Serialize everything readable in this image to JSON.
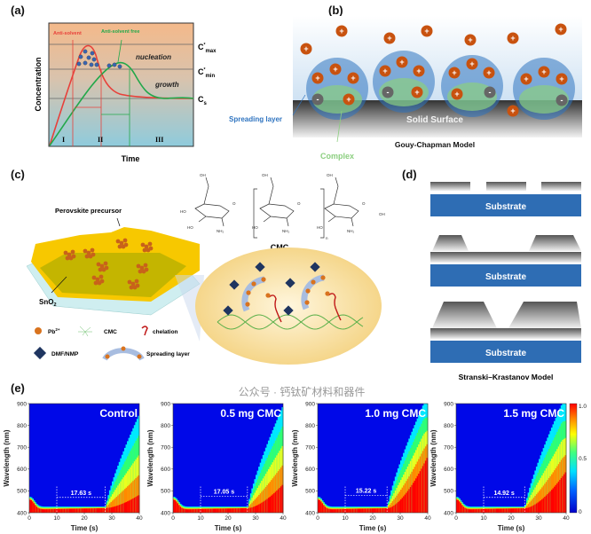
{
  "panels": {
    "a": {
      "label": "(a)",
      "ylabel": "Concentration",
      "xlabel": "Time",
      "anti_solvent": "Anti-solvent",
      "anti_solvent_free": "Anti-solvent free",
      "nucleation": "nucleation",
      "growth": "growth",
      "cmax": {
        "base": "C",
        "sup": "*",
        "sub": "max"
      },
      "cmin": {
        "base": "C",
        "sup": "*",
        "sub": "min"
      },
      "cs": {
        "base": "C",
        "sub": "s"
      },
      "stages": [
        "I",
        "II",
        "III"
      ],
      "colors": {
        "anti_solvent": "#e8403a",
        "anti_solvent_free": "#22a84a",
        "nuclei": "#3a64b0"
      }
    },
    "b": {
      "label": "(b)",
      "spreading_layer": "Spreading layer",
      "solid_surface": "Solid Surface",
      "complex": "Complex",
      "model": "Gouy-Chapman Model",
      "plus": "+",
      "minus": "-",
      "colors": {
        "cation": "#c8520f",
        "anion": "#666666",
        "spreading": "#2f74c0",
        "complex": "#8ccf80"
      }
    },
    "c": {
      "label": "(c)",
      "precursor": "Perovskite precursor",
      "sno2": {
        "base": "SnO",
        "sub": "2"
      },
      "cmc_title": "CMC",
      "chem_labels": [
        "OH",
        "O",
        "HO",
        "HO",
        "NH₂",
        "OH",
        "O",
        "HO",
        "NH₂",
        "OH",
        "O",
        "HO",
        "NH₂",
        "OH",
        "n"
      ],
      "legend": [
        {
          "icon": "pb-ion-icon",
          "text": "Pb",
          "sup": "2+"
        },
        {
          "icon": "cmc-network-icon",
          "text": "CMC"
        },
        {
          "icon": "chelation-icon",
          "text": "chelation"
        },
        {
          "icon": "dmf-nmp-diamond-icon",
          "text": "DMF/NMP"
        },
        {
          "icon": "spreading-layer-icon",
          "text": "Spreading layer"
        }
      ]
    },
    "d": {
      "label": "(d)",
      "substrate": "Substrate",
      "model": "Stranski–Krastanov Model",
      "colors": {
        "substrate": "#2e6db4"
      }
    },
    "e": {
      "label": "(e)"
    }
  },
  "watermark": "公众号 · 钙钛矿材料和器件",
  "chart_data": [
    {
      "type": "heatmap",
      "title": "Control",
      "xlabel": "Time (s)",
      "ylabel": "Wavelength (nm)",
      "xlim": [
        0,
        40
      ],
      "ylim": [
        400,
        900
      ],
      "xticks": [
        0,
        10,
        20,
        30,
        40
      ],
      "yticks": [
        400,
        500,
        600,
        700,
        800,
        900
      ],
      "interval": {
        "start": 10,
        "end": 27.63,
        "label": "17.63 s"
      }
    },
    {
      "type": "heatmap",
      "title": "0.5 mg CMC",
      "xlabel": "Time (s)",
      "ylabel": "Wavelength (nm)",
      "xlim": [
        0,
        40
      ],
      "ylim": [
        400,
        900
      ],
      "xticks": [
        0,
        10,
        20,
        30,
        40
      ],
      "yticks": [
        400,
        500,
        600,
        700,
        800,
        900
      ],
      "interval": {
        "start": 10,
        "end": 27.05,
        "label": "17.05 s"
      }
    },
    {
      "type": "heatmap",
      "title": "1.0 mg CMC",
      "xlabel": "Time (s)",
      "ylabel": "Wavelength (nm)",
      "xlim": [
        0,
        40
      ],
      "ylim": [
        400,
        900
      ],
      "xticks": [
        0,
        10,
        20,
        30,
        40
      ],
      "yticks": [
        400,
        500,
        600,
        700,
        800,
        900
      ],
      "interval": {
        "start": 10,
        "end": 25.22,
        "label": "15.22 s"
      }
    },
    {
      "type": "heatmap",
      "title": "1.5 mg CMC",
      "xlabel": "Time (s)",
      "ylabel": "Wavelength (nm)",
      "xlim": [
        0,
        40
      ],
      "ylim": [
        400,
        900
      ],
      "xticks": [
        0,
        10,
        20,
        30,
        40
      ],
      "yticks": [
        400,
        500,
        600,
        700,
        800,
        900
      ],
      "interval": {
        "start": 10,
        "end": 24.92,
        "label": "14.92 s"
      },
      "colorbar": {
        "range": [
          0,
          1.0
        ],
        "ticks": [
          "0",
          "0.5",
          "1.0"
        ]
      }
    }
  ]
}
